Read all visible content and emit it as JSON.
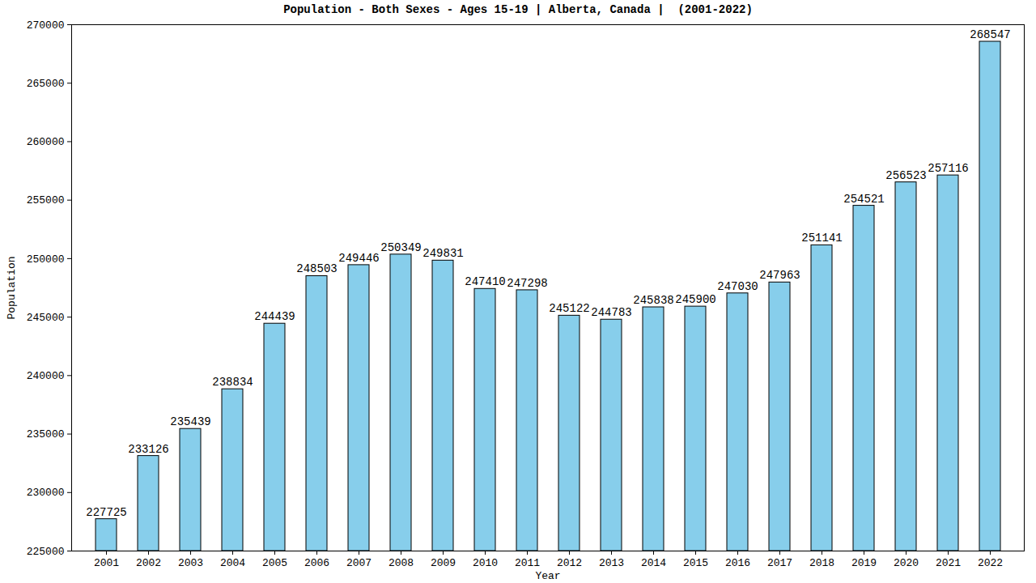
{
  "chart_data": {
    "type": "bar",
    "title": "Population - Both Sexes - Ages 15-19 | Alberta, Canada |  (2001-2022)",
    "x_label": "Year",
    "y_label": "Population",
    "categories": [
      "2001",
      "2002",
      "2003",
      "2004",
      "2005",
      "2006",
      "2007",
      "2008",
      "2009",
      "2010",
      "2011",
      "2012",
      "2013",
      "2014",
      "2015",
      "2016",
      "2017",
      "2018",
      "2019",
      "2020",
      "2021",
      "2022"
    ],
    "values": [
      227725,
      233126,
      235439,
      238834,
      244439,
      248503,
      249446,
      250349,
      249831,
      247410,
      247298,
      245122,
      244783,
      245838,
      245900,
      247030,
      247963,
      251141,
      254521,
      256523,
      257116,
      268547
    ],
    "color": "#87ceeb",
    "ylim": [
      225000,
      270000
    ],
    "yticks": [
      225000,
      230000,
      235000,
      240000,
      245000,
      250000,
      255000,
      260000,
      265000,
      270000
    ],
    "grid": false,
    "data_labels": true
  }
}
